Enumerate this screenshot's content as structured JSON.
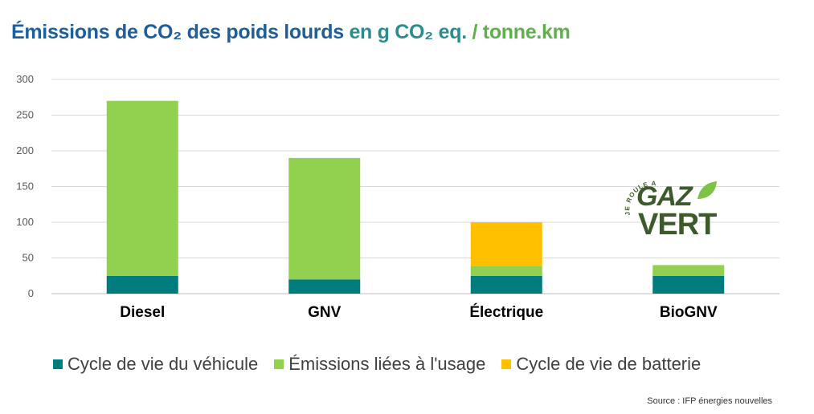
{
  "title": {
    "part1": "Émissions de CO₂ des poids lourds",
    "part2": " en g CO₂ eq.",
    "part3": " / tonne.km"
  },
  "chart_data": {
    "type": "bar",
    "stacked": true,
    "categories": [
      "Diesel",
      "GNV",
      "Électrique",
      "BioGNV"
    ],
    "series": [
      {
        "name": "Cycle de vie du véhicule",
        "color": "#007c7c",
        "values": [
          25,
          20,
          25,
          25
        ]
      },
      {
        "name": "Émissions liées à l'usage",
        "color": "#92d050",
        "values": [
          245,
          170,
          14,
          15
        ]
      },
      {
        "name": "Cycle de vie de batterie",
        "color": "#ffc000",
        "values": [
          0,
          0,
          61,
          0
        ]
      }
    ],
    "ylim": [
      0,
      300
    ],
    "yticks": [
      0,
      50,
      100,
      150,
      200,
      250,
      300
    ],
    "grid": true,
    "legend_position": "bottom"
  },
  "logo": {
    "line1": "JE ROULE AU",
    "line2": "GAZ",
    "line3": "VERT"
  },
  "source": "Source : IFP énergies nouvelles"
}
